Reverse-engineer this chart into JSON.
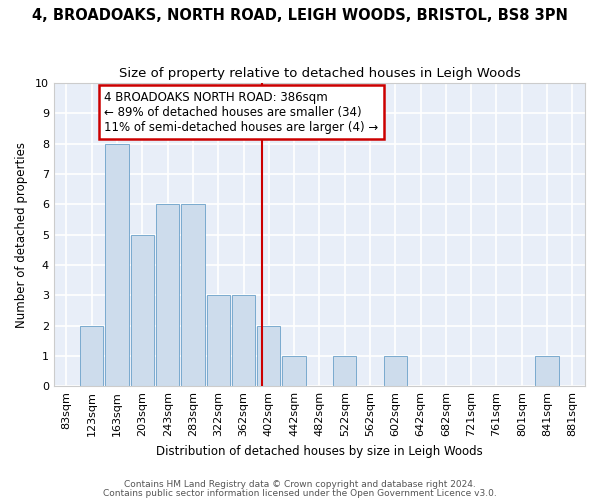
{
  "title1": "4, BROADOAKS, NORTH ROAD, LEIGH WOODS, BRISTOL, BS8 3PN",
  "title2": "Size of property relative to detached houses in Leigh Woods",
  "xlabel": "Distribution of detached houses by size in Leigh Woods",
  "ylabel": "Number of detached properties",
  "bins": [
    "83sqm",
    "123sqm",
    "163sqm",
    "203sqm",
    "243sqm",
    "283sqm",
    "322sqm",
    "362sqm",
    "402sqm",
    "442sqm",
    "482sqm",
    "522sqm",
    "562sqm",
    "602sqm",
    "642sqm",
    "682sqm",
    "721sqm",
    "761sqm",
    "801sqm",
    "841sqm",
    "881sqm"
  ],
  "values": [
    0,
    2,
    8,
    5,
    6,
    6,
    3,
    3,
    2,
    1,
    0,
    1,
    0,
    1,
    0,
    0,
    0,
    0,
    0,
    1,
    0
  ],
  "bar_color": "#cddcec",
  "bar_edge_color": "#7aaace",
  "vline_x_index": 7.75,
  "vline_color": "#cc0000",
  "annotation_text": "4 BROADOAKS NORTH ROAD: 386sqm\n← 89% of detached houses are smaller (34)\n11% of semi-detached houses are larger (4) →",
  "annotation_box_color": "#cc0000",
  "ylim": [
    0,
    10
  ],
  "yticks": [
    0,
    1,
    2,
    3,
    4,
    5,
    6,
    7,
    8,
    9,
    10
  ],
  "footer1": "Contains HM Land Registry data © Crown copyright and database right 2024.",
  "footer2": "Contains public sector information licensed under the Open Government Licence v3.0.",
  "bg_color": "#ffffff",
  "plot_bg_color": "#e8eef8",
  "grid_color": "#ffffff",
  "title1_fontsize": 10.5,
  "title2_fontsize": 9.5,
  "annot_fontsize": 8.5,
  "axis_fontsize": 8.5,
  "tick_fontsize": 8.0,
  "footer_fontsize": 6.5
}
